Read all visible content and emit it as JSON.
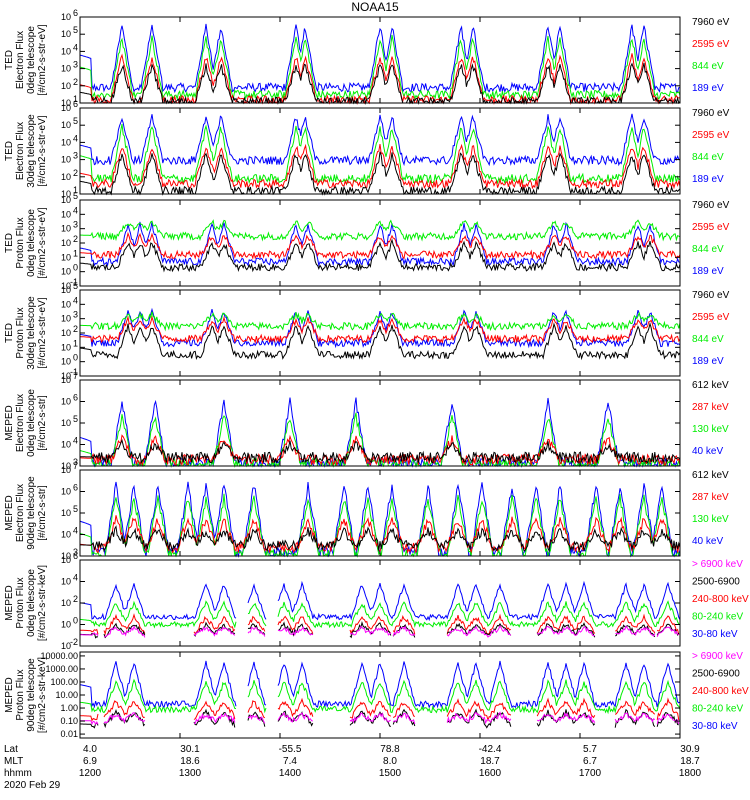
{
  "title": "NOAA15",
  "date": "2020 Feb 29",
  "colors": {
    "black": "#000000",
    "blue": "#0000ff",
    "green": "#00ee00",
    "red": "#ff0000",
    "magenta": "#ff00ff"
  },
  "x_axis": {
    "row_labels": [
      "Lat",
      "MLT",
      "hhmm"
    ],
    "ticks": [
      {
        "lat": "4.0",
        "mlt": "6.9",
        "hhmm": "1200"
      },
      {
        "lat": "30.1",
        "mlt": "18.6",
        "hhmm": "1300"
      },
      {
        "lat": "-55.5",
        "mlt": "7.4",
        "hhmm": "1400"
      },
      {
        "lat": "78.8",
        "mlt": "8.0",
        "hhmm": "1500"
      },
      {
        "lat": "-42.4",
        "mlt": "18.7",
        "hhmm": "1600"
      },
      {
        "lat": "5.7",
        "mlt": "6.7",
        "hhmm": "1700"
      },
      {
        "lat": "30.9",
        "mlt": "18.7",
        "hhmm": "1800"
      }
    ]
  },
  "chart_data": [
    {
      "type": "line",
      "ylabel": [
        "TED",
        "Electron Flux",
        "0deg telescope",
        "[#/cm2-s-str-eV]"
      ],
      "yscale": "log",
      "ylim": [
        10,
        1000000
      ],
      "yticks": [
        {
          "value": 10,
          "base": "10",
          "exp": "1"
        },
        {
          "value": 100,
          "base": "10",
          "exp": "2"
        },
        {
          "value": 1000,
          "base": "10",
          "exp": "3"
        },
        {
          "value": 10000,
          "base": "10",
          "exp": "4"
        },
        {
          "value": 100000,
          "base": "10",
          "exp": "5"
        },
        {
          "value": 1000000,
          "base": "10",
          "exp": "6"
        }
      ],
      "legend": [
        {
          "label": "7960 eV",
          "color": "#000000"
        },
        {
          "label": "2595 eV",
          "color": "#ff0000"
        },
        {
          "label": "844 eV",
          "color": "#00ee00"
        },
        {
          "label": "189 eV",
          "color": "#0000ff"
        }
      ],
      "pattern": "ted_e",
      "series": [
        {
          "name": "189 eV",
          "color": "#0000ff",
          "bg": 80,
          "peak": 300000,
          "order": 3
        },
        {
          "name": "844 eV",
          "color": "#00ee00",
          "bg": 30,
          "peak": 60000,
          "order": 2
        },
        {
          "name": "2595 eV",
          "color": "#ff0000",
          "bg": 15,
          "peak": 5000,
          "order": 1
        },
        {
          "name": "7960 eV",
          "color": "#000000",
          "bg": 12,
          "peak": 1500,
          "order": 0
        }
      ]
    },
    {
      "type": "line",
      "ylabel": [
        "TED",
        "Electron Flux",
        "30deg telescope",
        "[#/cm2-s-str-eV]"
      ],
      "yscale": "log",
      "ylim": [
        10,
        1000000
      ],
      "yticks": [
        {
          "value": 10,
          "base": "10",
          "exp": "1"
        },
        {
          "value": 100,
          "base": "10",
          "exp": "2"
        },
        {
          "value": 1000,
          "base": "10",
          "exp": "3"
        },
        {
          "value": 10000,
          "base": "10",
          "exp": "4"
        },
        {
          "value": 100000,
          "base": "10",
          "exp": "5"
        },
        {
          "value": 1000000,
          "base": "10",
          "exp": "6"
        }
      ],
      "legend": [
        {
          "label": "7960 eV",
          "color": "#000000"
        },
        {
          "label": "2595 eV",
          "color": "#ff0000"
        },
        {
          "label": "844 eV",
          "color": "#00ee00"
        },
        {
          "label": "189 eV",
          "color": "#0000ff"
        }
      ],
      "pattern": "ted_e",
      "series": [
        {
          "name": "189 eV",
          "color": "#0000ff",
          "bg": 900,
          "peak": 300000,
          "order": 3
        },
        {
          "name": "844 eV",
          "color": "#00ee00",
          "bg": 80,
          "peak": 80000,
          "order": 2
        },
        {
          "name": "2595 eV",
          "color": "#ff0000",
          "bg": 40,
          "peak": 6000,
          "order": 1
        },
        {
          "name": "7960 eV",
          "color": "#000000",
          "bg": 15,
          "peak": 2000,
          "order": 0
        }
      ]
    },
    {
      "type": "line",
      "ylabel": [
        "TED",
        "Proton Flux",
        "0deg telescope",
        "[#/cm2-s-str-eV]"
      ],
      "yscale": "log",
      "ylim": [
        0.1,
        100000
      ],
      "yticks": [
        {
          "value": 0.1,
          "base": "10",
          "exp": "-1"
        },
        {
          "value": 1,
          "base": "10",
          "exp": "0"
        },
        {
          "value": 10,
          "base": "10",
          "exp": "1"
        },
        {
          "value": 100,
          "base": "10",
          "exp": "2"
        },
        {
          "value": 1000,
          "base": "10",
          "exp": "3"
        },
        {
          "value": 10000,
          "base": "10",
          "exp": "4"
        },
        {
          "value": 100000,
          "base": "10",
          "exp": "5"
        }
      ],
      "legend": [
        {
          "label": "7960 eV",
          "color": "#000000"
        },
        {
          "label": "2595 eV",
          "color": "#ff0000"
        },
        {
          "label": "844 eV",
          "color": "#00ee00"
        },
        {
          "label": "189 eV",
          "color": "#0000ff"
        }
      ],
      "pattern": "ted_p",
      "series": [
        {
          "name": "189 eV",
          "color": "#0000ff",
          "bg": 5,
          "peak": 2000,
          "order": 3
        },
        {
          "name": "844 eV",
          "color": "#00ee00",
          "bg": 300,
          "peak": 3000,
          "order": 2
        },
        {
          "name": "2595 eV",
          "color": "#ff0000",
          "bg": 15,
          "peak": 300,
          "order": 1
        },
        {
          "name": "7960 eV",
          "color": "#000000",
          "bg": 2,
          "peak": 100,
          "order": 0
        }
      ]
    },
    {
      "type": "line",
      "ylabel": [
        "TED",
        "Proton Flux",
        "30deg telescope",
        "[#/cm2-s-str-eV]"
      ],
      "yscale": "log",
      "ylim": [
        0.1,
        100000
      ],
      "yticks": [
        {
          "value": 0.1,
          "base": "10",
          "exp": "-1"
        },
        {
          "value": 1,
          "base": "10",
          "exp": "0"
        },
        {
          "value": 10,
          "base": "10",
          "exp": "1"
        },
        {
          "value": 100,
          "base": "10",
          "exp": "2"
        },
        {
          "value": 1000,
          "base": "10",
          "exp": "3"
        },
        {
          "value": 10000,
          "base": "10",
          "exp": "4"
        },
        {
          "value": 100000,
          "base": "10",
          "exp": "5"
        }
      ],
      "legend": [
        {
          "label": "7960 eV",
          "color": "#000000"
        },
        {
          "label": "2595 eV",
          "color": "#ff0000"
        },
        {
          "label": "844 eV",
          "color": "#00ee00"
        },
        {
          "label": "189 eV",
          "color": "#0000ff"
        }
      ],
      "pattern": "ted_p",
      "series": [
        {
          "name": "189 eV",
          "color": "#0000ff",
          "bg": 20,
          "peak": 3000,
          "order": 3
        },
        {
          "name": "844 eV",
          "color": "#00ee00",
          "bg": 300,
          "peak": 2000,
          "order": 2
        },
        {
          "name": "2595 eV",
          "color": "#ff0000",
          "bg": 40,
          "peak": 800,
          "order": 1
        },
        {
          "name": "7960 eV",
          "color": "#000000",
          "bg": 3,
          "peak": 300,
          "order": 0
        }
      ]
    },
    {
      "type": "line",
      "ylabel": [
        "MEPED",
        "Electron Flux",
        "0deg telescope",
        "[#/cm2-s-str]"
      ],
      "yscale": "log",
      "ylim": [
        1000,
        10000000
      ],
      "yticks": [
        {
          "value": 1000,
          "base": "10",
          "exp": "3"
        },
        {
          "value": 10000,
          "base": "10",
          "exp": "4"
        },
        {
          "value": 100000,
          "base": "10",
          "exp": "5"
        },
        {
          "value": 1000000,
          "base": "10",
          "exp": "6"
        },
        {
          "value": 10000000,
          "base": "10",
          "exp": "7"
        }
      ],
      "legend": [
        {
          "label": "612 keV",
          "color": "#000000"
        },
        {
          "label": "287 keV",
          "color": "#ff0000"
        },
        {
          "label": "130 keV",
          "color": "#00ee00"
        },
        {
          "label": "40 keV",
          "color": "#0000ff"
        }
      ],
      "pattern": "meped_e0",
      "series": [
        {
          "name": "40 keV",
          "color": "#0000ff",
          "bg": 1300,
          "peak": 1000000,
          "order": 3
        },
        {
          "name": "130 keV",
          "color": "#00ee00",
          "bg": 1200,
          "peak": 200000,
          "order": 2
        },
        {
          "name": "287 keV",
          "color": "#ff0000",
          "bg": 2000,
          "peak": 20000,
          "order": 1
        },
        {
          "name": "612 keV",
          "color": "#000000",
          "bg": 2500,
          "peak": 10000,
          "order": 0
        }
      ]
    },
    {
      "type": "line",
      "ylabel": [
        "MEPED",
        "Electron Flux",
        "90deg telescope",
        "[#/cm2-s-str]"
      ],
      "yscale": "log",
      "ylim": [
        1000,
        10000000
      ],
      "yticks": [
        {
          "value": 1000,
          "base": "10",
          "exp": "3"
        },
        {
          "value": 10000,
          "base": "10",
          "exp": "4"
        },
        {
          "value": 100000,
          "base": "10",
          "exp": "5"
        },
        {
          "value": 1000000,
          "base": "10",
          "exp": "6"
        },
        {
          "value": 10000000,
          "base": "10",
          "exp": "7"
        }
      ],
      "legend": [
        {
          "label": "612 keV",
          "color": "#000000"
        },
        {
          "label": "287 keV",
          "color": "#ff0000"
        },
        {
          "label": "130 keV",
          "color": "#00ee00"
        },
        {
          "label": "40 keV",
          "color": "#0000ff"
        }
      ],
      "pattern": "meped_e90",
      "series": [
        {
          "name": "40 keV",
          "color": "#0000ff",
          "bg": 1500,
          "peak": 2000000,
          "order": 3
        },
        {
          "name": "130 keV",
          "color": "#00ee00",
          "bg": 1200,
          "peak": 500000,
          "order": 2
        },
        {
          "name": "287 keV",
          "color": "#ff0000",
          "bg": 2500,
          "peak": 50000,
          "order": 1
        },
        {
          "name": "612 keV",
          "color": "#000000",
          "bg": 3000,
          "peak": 15000,
          "order": 0
        }
      ]
    },
    {
      "type": "line",
      "ylabel": [
        "MEPED",
        "Proton Flux",
        "0deg telescope",
        "[#/cm2-s-str-keV]"
      ],
      "yscale": "log",
      "ylim": [
        0.01,
        1000000
      ],
      "yticks": [
        {
          "value": 0.01,
          "base": "10",
          "exp": "-2"
        },
        {
          "value": 1,
          "base": "10",
          "exp": "0"
        },
        {
          "value": 100,
          "base": "10",
          "exp": "2"
        },
        {
          "value": 10000,
          "base": "10",
          "exp": "4"
        },
        {
          "value": 1000000,
          "base": "10",
          "exp": "6"
        }
      ],
      "legend": [
        {
          "label": "> 6900 keV",
          "color": "#ff00ff"
        },
        {
          "label": "2500-6900",
          "color": "#000000"
        },
        {
          "label": "240-800 keV",
          "color": "#ff0000"
        },
        {
          "label": "80-240 keV",
          "color": "#00ee00"
        },
        {
          "label": "30-80 keV",
          "color": "#0000ff"
        }
      ],
      "pattern": "meped_p",
      "series": [
        {
          "name": "30-80 keV",
          "color": "#0000ff",
          "bg": 5,
          "peak": 5000,
          "order": 4
        },
        {
          "name": "80-240 keV",
          "color": "#00ee00",
          "bg": 1,
          "peak": 100,
          "order": 3
        },
        {
          "name": "240-800 keV",
          "color": "#ff0000",
          "bg": 0.2,
          "peak": 5,
          "order": 2
        },
        {
          "name": "2500-6900",
          "color": "#000000",
          "bg": 0.1,
          "peak": 1,
          "order": 1
        },
        {
          "name": "> 6900 keV",
          "color": "#ff00ff",
          "bg": 0.1,
          "peak": 0.5,
          "order": 0
        }
      ]
    },
    {
      "type": "line",
      "ylabel": [
        "MEPED",
        "Proton Flux",
        "90deg telescope",
        "[#/cm2-s-str-keV]"
      ],
      "yscale": "log",
      "ylim": [
        0.005,
        20000
      ],
      "yticks": [
        {
          "value": 0.01,
          "text": "0.01"
        },
        {
          "value": 0.1,
          "text": "0.10"
        },
        {
          "value": 1,
          "text": "1.00"
        },
        {
          "value": 10,
          "text": "10.00"
        },
        {
          "value": 100,
          "text": "100.00"
        },
        {
          "value": 1000,
          "text": "1000.00"
        },
        {
          "value": 10000,
          "text": "10000.00"
        }
      ],
      "legend": [
        {
          "label": "> 6900 keV",
          "color": "#ff00ff"
        },
        {
          "label": "2500-6900",
          "color": "#000000"
        },
        {
          "label": "240-800 keV",
          "color": "#ff0000"
        },
        {
          "label": "80-240 keV",
          "color": "#00ee00"
        },
        {
          "label": "30-80 keV",
          "color": "#0000ff"
        }
      ],
      "pattern": "meped_p",
      "series": [
        {
          "name": "30-80 keV",
          "color": "#0000ff",
          "bg": 2,
          "peak": 3000,
          "order": 4
        },
        {
          "name": "80-240 keV",
          "color": "#00ee00",
          "bg": 0.8,
          "peak": 100,
          "order": 3
        },
        {
          "name": "240-800 keV",
          "color": "#ff0000",
          "bg": 0.2,
          "peak": 3,
          "order": 2
        },
        {
          "name": "2500-6900",
          "color": "#000000",
          "bg": 0.05,
          "peak": 0.5,
          "order": 1
        },
        {
          "name": "> 6900 keV",
          "color": "#ff00ff",
          "bg": 0.1,
          "peak": 0.3,
          "order": 0
        }
      ]
    }
  ]
}
